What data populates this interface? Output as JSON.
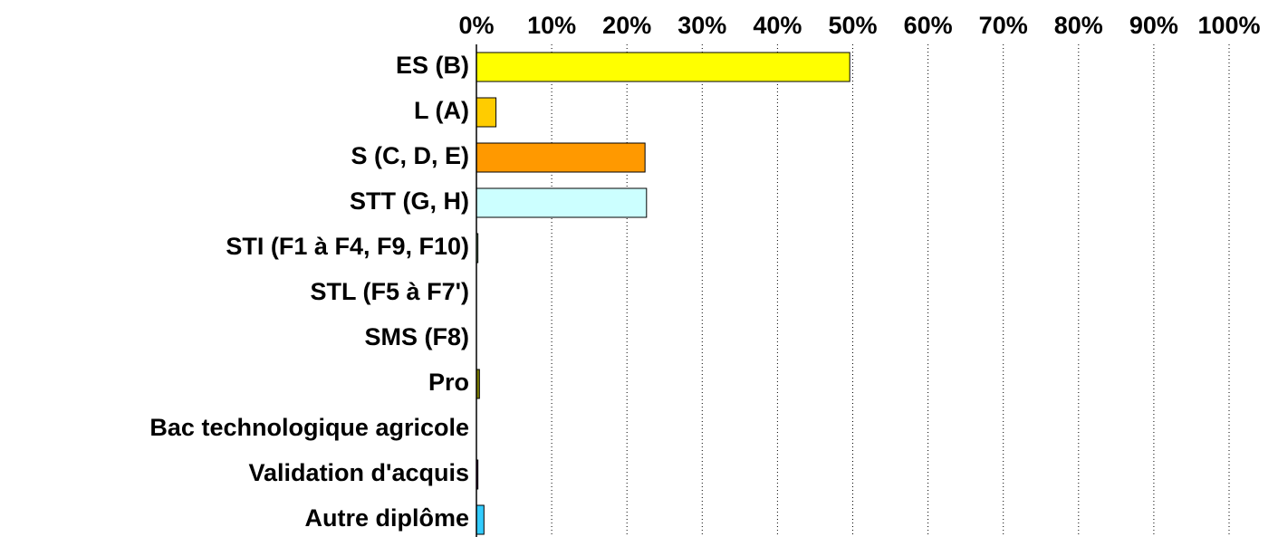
{
  "chart_data": {
    "type": "barh",
    "categories": [
      "ES (B)",
      "L (A)",
      "S (C, D, E)",
      "STT (G, H)",
      "STI (F1 à F4, F9, F10)",
      "STL (F5 à F7')",
      "SMS (F8)",
      "Pro",
      "Bac technologique agricole",
      "Validation d'acquis",
      "Autre diplôme"
    ],
    "values": [
      49.6,
      2.6,
      22.4,
      22.6,
      0.2,
      0,
      0,
      0.4,
      0,
      0.2,
      1.0
    ],
    "colors": [
      "#ffff00",
      "#ffcc00",
      "#ff9900",
      "#ccffff",
      "#99cc99",
      "#ffffff",
      "#ffffff",
      "#808000",
      "#ffffff",
      "#660066",
      "#33ccff"
    ],
    "xlim": [
      0,
      100
    ],
    "xticks": [
      {
        "value": 0,
        "label": "0%"
      },
      {
        "value": 10,
        "label": "10%"
      },
      {
        "value": 20,
        "label": "20%"
      },
      {
        "value": 30,
        "label": "30%"
      },
      {
        "value": 40,
        "label": "40%"
      },
      {
        "value": 50,
        "label": "50%"
      },
      {
        "value": 60,
        "label": "60%"
      },
      {
        "value": 70,
        "label": "70%"
      },
      {
        "value": 80,
        "label": "80%"
      },
      {
        "value": 90,
        "label": "90%"
      },
      {
        "value": 100,
        "label": "100%"
      }
    ],
    "grid": true
  }
}
